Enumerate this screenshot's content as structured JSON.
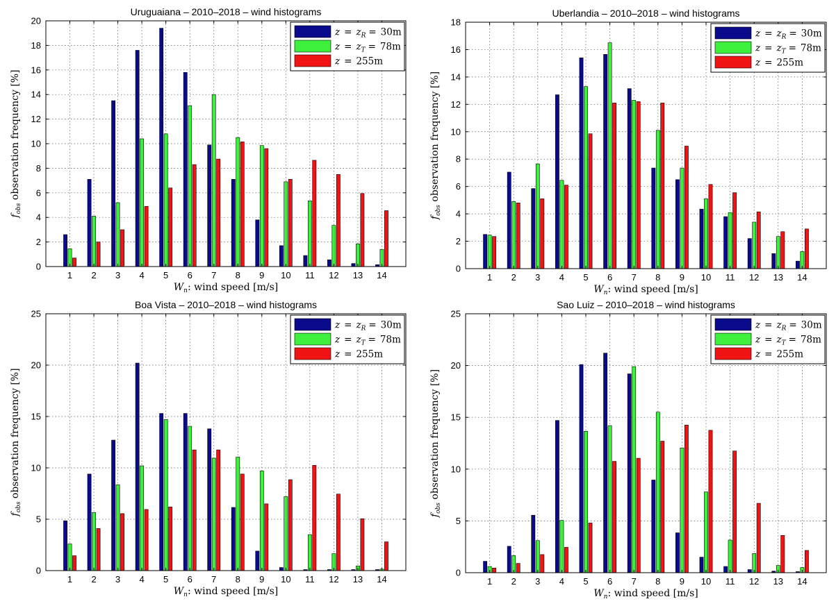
{
  "colors": {
    "series_30m": "#0a0a8c",
    "series_78m": "#3cf03c",
    "series_255m": "#f01414"
  },
  "legend": {
    "entries": [
      {
        "lhs": "z",
        "eq1": "=",
        "mid_base": "z",
        "mid_sub": "R",
        "eq2": "=",
        "val": "30m"
      },
      {
        "lhs": "z",
        "eq1": "=",
        "mid_base": "z",
        "mid_sub": "T",
        "eq2": "=",
        "val": "78m"
      },
      {
        "lhs": "z",
        "eq1": "=",
        "mid_base": "",
        "mid_sub": "",
        "eq2": "",
        "val": "255m"
      }
    ]
  },
  "chart_data": [
    {
      "type": "bar",
      "title": "Uruguaiana – 2010–2018 – wind histograms",
      "xlabel_base": "W",
      "xlabel_sub": "n",
      "xlabel_rest": ": wind speed [m/s]",
      "ylabel_base": "f",
      "ylabel_sub": "obs",
      "ylabel_rest": " observation frequency [%]",
      "categories": [
        "1",
        "2",
        "3",
        "4",
        "5",
        "6",
        "7",
        "8",
        "9",
        "10",
        "11",
        "12",
        "13",
        "14"
      ],
      "ylim": [
        0,
        20
      ],
      "yticks": [
        0,
        2,
        4,
        6,
        8,
        10,
        12,
        14,
        16,
        18,
        20
      ],
      "grid": true,
      "legend_position": "top-right",
      "series": [
        {
          "values": [
            2.6,
            7.1,
            13.5,
            17.6,
            19.4,
            15.8,
            9.9,
            7.1,
            3.8,
            1.7,
            0.9,
            0.55,
            0.25,
            0.15
          ]
        },
        {
          "values": [
            1.45,
            4.1,
            5.2,
            10.4,
            10.8,
            13.1,
            14.0,
            10.5,
            9.85,
            6.9,
            5.35,
            3.35,
            1.85,
            1.4
          ]
        },
        {
          "values": [
            0.7,
            2.0,
            3.0,
            4.9,
            6.4,
            8.3,
            8.75,
            10.15,
            9.6,
            7.1,
            8.65,
            7.5,
            5.95,
            4.55
          ]
        }
      ]
    },
    {
      "type": "bar",
      "title": "Uberlandia – 2010–2018 – wind histograms",
      "xlabel_base": "W",
      "xlabel_sub": "n",
      "xlabel_rest": ": wind speed [m/s]",
      "ylabel_base": "f",
      "ylabel_sub": "obs",
      "ylabel_rest": " observation frequency [%]",
      "categories": [
        "1",
        "2",
        "3",
        "4",
        "5",
        "6",
        "7",
        "8",
        "9",
        "10",
        "11",
        "12",
        "13",
        "14"
      ],
      "ylim": [
        0,
        18
      ],
      "yticks": [
        0,
        2,
        4,
        6,
        8,
        10,
        12,
        14,
        16,
        18
      ],
      "grid": true,
      "legend_position": "top-right",
      "series": [
        {
          "values": [
            2.5,
            7.05,
            5.85,
            12.7,
            15.4,
            15.65,
            13.15,
            7.35,
            6.5,
            4.35,
            3.8,
            2.2,
            1.1,
            0.55
          ]
        },
        {
          "values": [
            2.45,
            4.9,
            7.65,
            6.45,
            13.3,
            16.5,
            12.3,
            10.1,
            7.35,
            5.1,
            4.1,
            3.4,
            2.35,
            1.25
          ]
        },
        {
          "values": [
            2.35,
            4.8,
            5.1,
            6.1,
            9.85,
            12.1,
            12.2,
            12.1,
            8.95,
            6.15,
            5.55,
            4.15,
            2.7,
            2.9
          ]
        }
      ]
    },
    {
      "type": "bar",
      "title": "Boa Vista – 2010–2018 – wind histograms",
      "xlabel_base": "W",
      "xlabel_sub": "n",
      "xlabel_rest": ": wind speed [m/s]",
      "ylabel_base": "f",
      "ylabel_sub": "obs",
      "ylabel_rest": " observation frequency [%]",
      "categories": [
        "1",
        "2",
        "3",
        "4",
        "5",
        "6",
        "7",
        "8",
        "9",
        "10",
        "11",
        "12",
        "13",
        "14"
      ],
      "ylim": [
        0,
        25
      ],
      "yticks": [
        0,
        5,
        10,
        15,
        20,
        25
      ],
      "grid": true,
      "legend_position": "top-right",
      "series": [
        {
          "values": [
            4.85,
            9.4,
            12.7,
            20.2,
            15.3,
            15.3,
            13.8,
            6.15,
            1.9,
            0.3,
            0.1,
            0.1,
            0.1,
            0.1
          ]
        },
        {
          "values": [
            2.6,
            5.65,
            8.35,
            10.2,
            14.7,
            14.05,
            10.95,
            11.05,
            9.7,
            7.2,
            3.5,
            1.65,
            0.45,
            0.15
          ]
        },
        {
          "values": [
            1.45,
            4.1,
            5.55,
            5.95,
            6.2,
            11.75,
            11.75,
            9.4,
            6.5,
            8.85,
            10.25,
            7.45,
            5.05,
            2.8
          ]
        }
      ]
    },
    {
      "type": "bar",
      "title": "Sao Luiz – 2010–2018 – wind histograms",
      "xlabel_base": "W",
      "xlabel_sub": "n",
      "xlabel_rest": ": wind speed [m/s]",
      "ylabel_base": "f",
      "ylabel_sub": "obs",
      "ylabel_rest": " observation frequency [%]",
      "categories": [
        "1",
        "2",
        "3",
        "4",
        "5",
        "6",
        "7",
        "8",
        "9",
        "10",
        "11",
        "12",
        "13",
        "14"
      ],
      "ylim": [
        0,
        25
      ],
      "yticks": [
        0,
        5,
        10,
        15,
        20,
        25
      ],
      "grid": true,
      "legend_position": "top-right",
      "series": [
        {
          "values": [
            1.1,
            2.55,
            5.55,
            14.7,
            20.1,
            21.2,
            19.2,
            8.95,
            3.85,
            1.5,
            0.6,
            0.3,
            0.15,
            0.1
          ]
        },
        {
          "values": [
            0.6,
            1.65,
            3.1,
            5.05,
            13.65,
            14.2,
            19.9,
            15.5,
            12.05,
            7.8,
            3.15,
            1.85,
            0.7,
            0.5
          ]
        },
        {
          "values": [
            0.45,
            0.9,
            1.75,
            2.45,
            4.8,
            10.75,
            11.05,
            12.7,
            14.25,
            13.75,
            11.75,
            6.7,
            3.6,
            2.15
          ]
        }
      ]
    }
  ]
}
